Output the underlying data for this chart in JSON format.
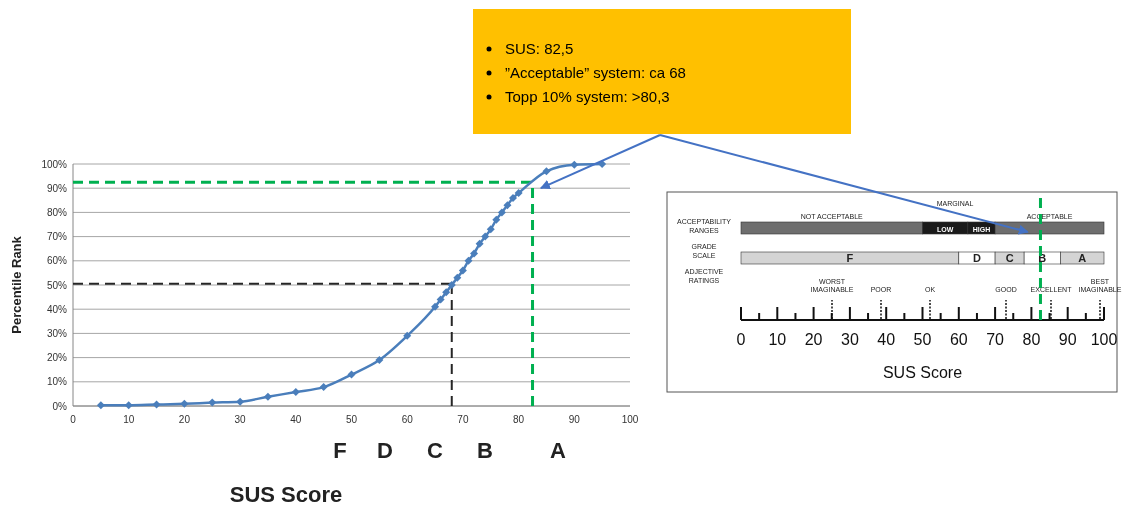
{
  "chart_data": [
    {
      "type": "line",
      "xlabel": "SUS Score",
      "ylabel": "Percentile Rank",
      "color": "#4a7ebb",
      "marker": "diamond",
      "grid": "y",
      "x": [
        5,
        10,
        15,
        20,
        25,
        30,
        35,
        40,
        45,
        50,
        55,
        60,
        65,
        66,
        67,
        68,
        69,
        70,
        71,
        72,
        73,
        74,
        75,
        76,
        77,
        78,
        79,
        80,
        85,
        90,
        95
      ],
      "values": [
        0.3,
        0.3,
        0.6,
        0.9,
        1.4,
        1.8,
        3.8,
        5.8,
        7.8,
        13,
        19,
        29,
        41,
        44,
        47,
        50,
        53,
        56,
        60,
        63,
        67,
        70,
        73,
        77,
        80,
        83,
        86,
        88,
        97,
        99.7,
        100
      ],
      "xlim": [
        0,
        100
      ],
      "xticks": [
        0,
        10,
        20,
        30,
        40,
        50,
        60,
        70,
        80,
        90,
        100
      ],
      "ylim": [
        0,
        100
      ],
      "yticks": [
        {
          "value": 0,
          "label": "0%"
        },
        {
          "value": 10,
          "label": "10%"
        },
        {
          "value": 20,
          "label": "20%"
        },
        {
          "value": 30,
          "label": "30%"
        },
        {
          "value": 40,
          "label": "40%"
        },
        {
          "value": 50,
          "label": "50%"
        },
        {
          "value": 60,
          "label": "60%"
        },
        {
          "value": 70,
          "label": "70%"
        },
        {
          "value": 80,
          "label": "80%"
        },
        {
          "value": 90,
          "label": "90%"
        },
        {
          "value": 100,
          "label": "100%"
        }
      ],
      "ref_lines": [
        {
          "axis": "y",
          "value": 92.5,
          "color": "#00b050",
          "line_style": "dashed"
        },
        {
          "axis": "x",
          "value": 82.5,
          "color": "#00b050",
          "line_style": "dashed"
        },
        {
          "axis": "y",
          "value": 50.5,
          "color": "#262626",
          "line_style": "dashed"
        },
        {
          "axis": "x",
          "value": 68,
          "color": "#262626",
          "line_style": "dashed"
        }
      ],
      "annotations": [
        "SUS: 82,5",
        "”Acceptable” system: ca 68",
        "Topp 10% system: >80,3",
        "F",
        "D",
        "C",
        "B",
        "A"
      ]
    },
    {
      "type": "bar",
      "orientation": "horizontal",
      "stacked": true,
      "xlabel": "SUS Score",
      "categories": [
        "ACCEPTABILITY RANGES",
        "GRADE SCALE"
      ],
      "series": [
        {
          "name": "NOT ACCEPTABLE",
          "color": "#6e6e6e",
          "values": [
            50,
            null
          ]
        },
        {
          "name": "LOW",
          "color": "#1a1a1a",
          "values": [
            12.5,
            null
          ]
        },
        {
          "name": "HIGH",
          "color": "#1a1a1a",
          "values": [
            7.5,
            null
          ]
        },
        {
          "name": "ACCEPTABLE",
          "color": "#6e6e6e",
          "values": [
            30,
            null
          ]
        },
        {
          "name": "F",
          "color": "#d4d4d4",
          "values": [
            null,
            60
          ]
        },
        {
          "name": "D",
          "color": "#ffffff",
          "values": [
            null,
            10
          ]
        },
        {
          "name": "C",
          "color": "#d4d4d4",
          "values": [
            null,
            8
          ]
        },
        {
          "name": "B",
          "color": "#ffffff",
          "values": [
            null,
            10
          ]
        },
        {
          "name": "A",
          "color": "#d4d4d4",
          "values": [
            null,
            12
          ]
        }
      ],
      "xlim": [
        0,
        100
      ],
      "xticks": [
        0,
        10,
        20,
        30,
        40,
        50,
        60,
        70,
        80,
        90,
        100
      ],
      "ref_lines": [
        {
          "axis": "x",
          "value": 82.5,
          "color": "#00b050",
          "line_style": "dashed"
        }
      ],
      "annotations": [
        "ADJECTIVE RATINGS",
        "MARGINAL",
        "WORST IMAGINABLE",
        "POOR",
        "OK",
        "GOOD",
        "EXCELLENT",
        "BEST IMAGINABLE"
      ]
    }
  ]
}
